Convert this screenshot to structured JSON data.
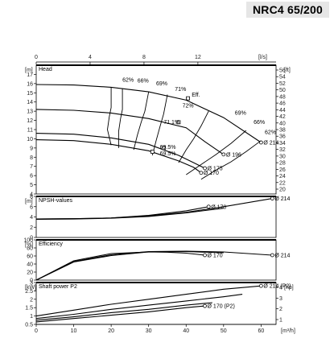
{
  "header": {
    "title": "NRC4 65/200"
  },
  "chart_data": {
    "type": "line",
    "x_top": {
      "unit": "[l/s]",
      "ticks": [
        0,
        4,
        8,
        12
      ],
      "range": [
        0,
        17.8
      ]
    },
    "x_bottom": {
      "unit": "[m³/h]",
      "ticks": [
        0,
        10,
        20,
        30,
        40,
        50,
        60
      ],
      "range": [
        0,
        64
      ]
    },
    "impeller_diameters": [
      "Ø 214",
      "Ø 196",
      "Ø 175",
      "Ø 170"
    ],
    "panels": [
      {
        "name": "head",
        "title": "Head",
        "unit_left": "[m]",
        "unit_right": "[ft]",
        "ylim": [
          4,
          18
        ],
        "y_ticks": [
          4,
          5,
          6,
          7,
          8,
          9,
          10,
          11,
          12,
          13,
          14,
          15,
          16,
          17
        ],
        "y_right_ticks": [
          20,
          22,
          24,
          26,
          28,
          30,
          32,
          34,
          36,
          38,
          40,
          42,
          44,
          46,
          48,
          50,
          52,
          54,
          56
        ],
        "series": [
          {
            "label": "Ø 214",
            "x": [
              0,
              10,
              20,
              30,
              40,
              50,
              60
            ],
            "y": [
              15.9,
              15.85,
              15.6,
              15.1,
              14.2,
              12.3,
              9.6
            ]
          },
          {
            "label": "Ø 196",
            "x": [
              0,
              10,
              20,
              30,
              40,
              45,
              50
            ],
            "y": [
              13.2,
              13.1,
              12.8,
              12.2,
              11.2,
              9.7,
              8.3
            ]
          },
          {
            "label": "Ø 175",
            "x": [
              0,
              10,
              20,
              30,
              38,
              42,
              45
            ],
            "y": [
              10.6,
              10.5,
              10.1,
              9.4,
              8.2,
              7.4,
              6.8
            ]
          },
          {
            "label": "Ø 170",
            "x": [
              0,
              10,
              20,
              30,
              38,
              42,
              44
            ],
            "y": [
              9.9,
              9.8,
              9.4,
              8.7,
              7.6,
              6.9,
              6.3
            ]
          }
        ],
        "efficiency_labels": [
          "62%",
          "66%",
          "69%",
          "71%",
          "72%",
          "71.1%",
          "69%",
          "66%",
          "62%",
          "69.5%",
          "69.5%"
        ],
        "eff_label": "Eff.",
        "iso_efficiency": [
          {
            "x": [
              20,
              20,
              19.5,
              19,
              20
            ],
            "y": [
              15.6,
              13.4,
              12.4,
              11.0,
              9.3
            ]
          },
          {
            "x": [
              23,
              23,
              22.5,
              22,
              22
            ],
            "y": [
              15.5,
              13.2,
              12.2,
              10.8,
              9.0
            ]
          },
          {
            "x": [
              30,
              29,
              28,
              27,
              26
            ],
            "y": [
              15.1,
              13.0,
              11.8,
              10.4,
              8.8
            ]
          },
          {
            "x": [
              35,
              34,
              33,
              32,
              31
            ],
            "y": [
              14.8,
              12.7,
              11.3,
              9.8,
              8.2
            ]
          },
          {
            "x": [
              46,
              44,
              42,
              40,
              38
            ],
            "y": [
              13.0,
              11.4,
              10.0,
              8.8,
              7.4
            ]
          },
          {
            "x": [
              56,
              52,
              48,
              44,
              40
            ],
            "y": [
              10.9,
              9.5,
              8.3,
              7.2,
              6.1
            ]
          },
          {
            "x": [
              60,
              56,
              52,
              48,
              44
            ],
            "y": [
              9.8,
              8.6,
              7.5,
              6.6,
              5.6
            ]
          }
        ],
        "bep_points": {
          "x": [
            40.5,
            38,
            34,
            31
          ],
          "y": [
            14.4,
            11.8,
            9.0,
            8.6
          ]
        }
      },
      {
        "name": "npsh",
        "title": "NPSH-values",
        "unit_left": "[m]",
        "ylim": [
          0,
          8
        ],
        "y_ticks": [
          0,
          2,
          4,
          6,
          8
        ],
        "series": [
          {
            "label": "Ø 214",
            "x": [
              0,
              10,
              20,
              30,
              40,
              50,
              63
            ],
            "y": [
              3.6,
              3.65,
              3.8,
              4.2,
              4.9,
              6.0,
              7.6
            ]
          },
          {
            "label": "Ø 170",
            "x": [
              0,
              10,
              20,
              30,
              40,
              46
            ],
            "y": [
              3.6,
              3.65,
              3.8,
              4.3,
              5.2,
              6.0
            ]
          },
          {
            "label": "",
            "x": [
              0,
              10,
              20,
              30,
              40,
              50
            ],
            "y": [
              3.55,
              3.6,
              3.75,
              4.1,
              4.8,
              5.7
            ]
          }
        ]
      },
      {
        "name": "efficiency",
        "title": "Efficiency",
        "unit_left": "[%]",
        "ylim": [
          0,
          100
        ],
        "y_ticks": [
          0,
          20,
          40,
          60,
          80,
          100
        ],
        "series": [
          {
            "label": "Ø 214",
            "x": [
              0,
              10,
              20,
              30,
              40,
              50,
              63
            ],
            "y": [
              0,
              46,
              63,
              71,
              72,
              70,
              62
            ]
          },
          {
            "label": "Ø 170",
            "x": [
              0,
              10,
              20,
              30,
              35,
              40,
              45
            ],
            "y": [
              0,
              48,
              66,
              70,
              69.5,
              67,
              62
            ]
          },
          {
            "label": "",
            "x": [
              0,
              10,
              20,
              30,
              40,
              50
            ],
            "y": [
              0,
              45,
              61,
              70,
              71,
              68
            ]
          }
        ]
      },
      {
        "name": "power",
        "title": "Shaft power P2",
        "unit_left": "[kW]",
        "unit_right": "[hp]",
        "ylim": [
          0.5,
          3
        ],
        "y_ticks": [
          0.5,
          1,
          1.5,
          2,
          2.5,
          3
        ],
        "y_right_ticks": [
          1,
          2,
          3,
          4
        ],
        "series": [
          {
            "label": "Ø 214 (P2)",
            "x": [
              0,
              10,
              20,
              30,
              40,
              50,
              60
            ],
            "y": [
              1.0,
              1.35,
              1.7,
              2.0,
              2.3,
              2.6,
              2.8
            ]
          },
          {
            "label": "",
            "x": [
              0,
              10,
              20,
              30,
              40,
              50,
              55
            ],
            "y": [
              0.85,
              1.1,
              1.4,
              1.65,
              1.9,
              2.15,
              2.3
            ]
          },
          {
            "label": "Ø 170 (P2)",
            "x": [
              0,
              10,
              20,
              30,
              40,
              45
            ],
            "y": [
              0.65,
              0.85,
              1.05,
              1.25,
              1.5,
              1.6
            ]
          },
          {
            "label": "",
            "x": [
              0,
              10,
              20,
              30,
              40,
              47
            ],
            "y": [
              0.75,
              0.95,
              1.2,
              1.4,
              1.65,
              1.8
            ]
          }
        ]
      }
    ]
  }
}
